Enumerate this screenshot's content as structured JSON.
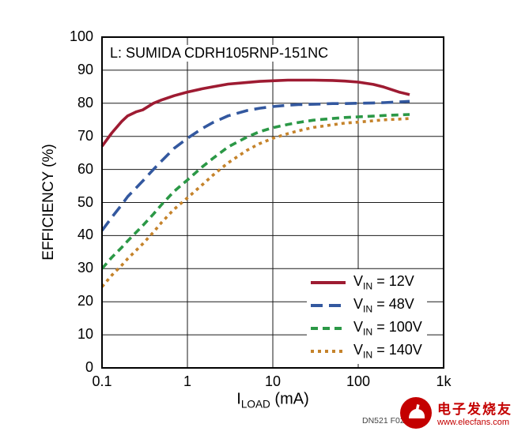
{
  "chart_data": {
    "type": "line",
    "title_annotation": "L: SUMIDA CDRH105RNP-151NC",
    "xlabel": {
      "prefix": "I",
      "sub": "LOAD",
      "rest": " (mA)"
    },
    "ylabel": "EFFICIENCY (%)",
    "xscale": "log",
    "xlim": [
      0.1,
      1000
    ],
    "ylim": [
      0,
      100
    ],
    "grid": true,
    "legend_position": "lower right",
    "x_ticks": [
      {
        "v": 0.1,
        "label": "0.1"
      },
      {
        "v": 1,
        "label": "1"
      },
      {
        "v": 10,
        "label": "10"
      },
      {
        "v": 100,
        "label": "100"
      },
      {
        "v": 1000,
        "label": "1k"
      }
    ],
    "y_ticks": [
      {
        "v": 0,
        "label": "0"
      },
      {
        "v": 10,
        "label": "10"
      },
      {
        "v": 20,
        "label": "20"
      },
      {
        "v": 30,
        "label": "30"
      },
      {
        "v": 40,
        "label": "40"
      },
      {
        "v": 50,
        "label": "50"
      },
      {
        "v": 60,
        "label": "60"
      },
      {
        "v": 70,
        "label": "70"
      },
      {
        "v": 80,
        "label": "80"
      },
      {
        "v": 90,
        "label": "90"
      },
      {
        "v": 100,
        "label": "100"
      }
    ],
    "series": [
      {
        "id": "vin-12v",
        "name": "VIN = 12V",
        "label": {
          "prefix": "V",
          "sub": "IN",
          "rest": " = 12V"
        },
        "color": "#9E1B32",
        "dash": null,
        "points": [
          [
            0.1,
            67
          ],
          [
            0.13,
            71
          ],
          [
            0.17,
            74.5
          ],
          [
            0.2,
            76.2
          ],
          [
            0.25,
            77.4
          ],
          [
            0.3,
            78
          ],
          [
            0.4,
            80
          ],
          [
            0.5,
            81
          ],
          [
            0.7,
            82.3
          ],
          [
            1,
            83.4
          ],
          [
            1.5,
            84.4
          ],
          [
            2,
            85
          ],
          [
            3,
            85.8
          ],
          [
            5,
            86.3
          ],
          [
            7,
            86.6
          ],
          [
            10,
            86.8
          ],
          [
            15,
            87
          ],
          [
            20,
            87
          ],
          [
            30,
            87
          ],
          [
            50,
            86.9
          ],
          [
            70,
            86.7
          ],
          [
            100,
            86.4
          ],
          [
            150,
            85.7
          ],
          [
            200,
            84.9
          ],
          [
            300,
            83.4
          ],
          [
            400,
            82.6
          ]
        ]
      },
      {
        "id": "vin-48v",
        "name": "VIN = 48V",
        "label": {
          "prefix": "V",
          "sub": "IN",
          "rest": " = 48V"
        },
        "color": "#33589F",
        "dash": "15,8",
        "points": [
          [
            0.1,
            41.5
          ],
          [
            0.13,
            45.5
          ],
          [
            0.17,
            49.3
          ],
          [
            0.2,
            51.8
          ],
          [
            0.3,
            56.5
          ],
          [
            0.4,
            60
          ],
          [
            0.5,
            62.6
          ],
          [
            0.7,
            66.4
          ],
          [
            1,
            69.4
          ],
          [
            1.5,
            72.4
          ],
          [
            2,
            74.2
          ],
          [
            3,
            76.2
          ],
          [
            5,
            77.8
          ],
          [
            7,
            78.5
          ],
          [
            10,
            79
          ],
          [
            15,
            79.4
          ],
          [
            20,
            79.6
          ],
          [
            30,
            79.7
          ],
          [
            50,
            79.9
          ],
          [
            70,
            79.9
          ],
          [
            100,
            80
          ],
          [
            150,
            80.1
          ],
          [
            200,
            80.2
          ],
          [
            300,
            80.4
          ],
          [
            400,
            80.6
          ]
        ]
      },
      {
        "id": "vin-100v",
        "name": "VIN = 100V",
        "label": {
          "prefix": "V",
          "sub": "IN",
          "rest": " = 100V"
        },
        "color": "#2B9846",
        "dash": "9,6",
        "points": [
          [
            0.1,
            30
          ],
          [
            0.13,
            33.4
          ],
          [
            0.17,
            36.4
          ],
          [
            0.2,
            38.4
          ],
          [
            0.3,
            43
          ],
          [
            0.4,
            46.5
          ],
          [
            0.5,
            49.4
          ],
          [
            0.7,
            53.4
          ],
          [
            1,
            56.8
          ],
          [
            1.5,
            60.8
          ],
          [
            2,
            63.4
          ],
          [
            3,
            66.8
          ],
          [
            5,
            69.8
          ],
          [
            7,
            71.4
          ],
          [
            10,
            72.6
          ],
          [
            15,
            73.6
          ],
          [
            20,
            74.2
          ],
          [
            30,
            74.9
          ],
          [
            50,
            75.4
          ],
          [
            70,
            75.7
          ],
          [
            100,
            75.9
          ],
          [
            150,
            76.1
          ],
          [
            200,
            76.3
          ],
          [
            300,
            76.5
          ],
          [
            400,
            76.6
          ]
        ]
      },
      {
        "id": "vin-140v",
        "name": "VIN = 140V",
        "label": {
          "prefix": "V",
          "sub": "IN",
          "rest": " = 140V"
        },
        "color": "#C5832B",
        "dash": "4,5",
        "points": [
          [
            0.1,
            24.5
          ],
          [
            0.13,
            28
          ],
          [
            0.17,
            31
          ],
          [
            0.2,
            33
          ],
          [
            0.3,
            37.5
          ],
          [
            0.4,
            41
          ],
          [
            0.5,
            44
          ],
          [
            0.7,
            48
          ],
          [
            1,
            51.4
          ],
          [
            1.5,
            55.4
          ],
          [
            2,
            58.3
          ],
          [
            3,
            62
          ],
          [
            5,
            65.8
          ],
          [
            7,
            67.8
          ],
          [
            10,
            69.4
          ],
          [
            15,
            70.8
          ],
          [
            20,
            71.7
          ],
          [
            30,
            72.7
          ],
          [
            50,
            73.5
          ],
          [
            70,
            74
          ],
          [
            100,
            74.3
          ],
          [
            150,
            74.7
          ],
          [
            200,
            75
          ],
          [
            300,
            75.2
          ],
          [
            400,
            75.4
          ]
        ]
      }
    ]
  },
  "footer": {
    "caption": "DN521 F02"
  },
  "watermark": {
    "brand": "电子发烧友",
    "url": "www.elecfans.com"
  }
}
